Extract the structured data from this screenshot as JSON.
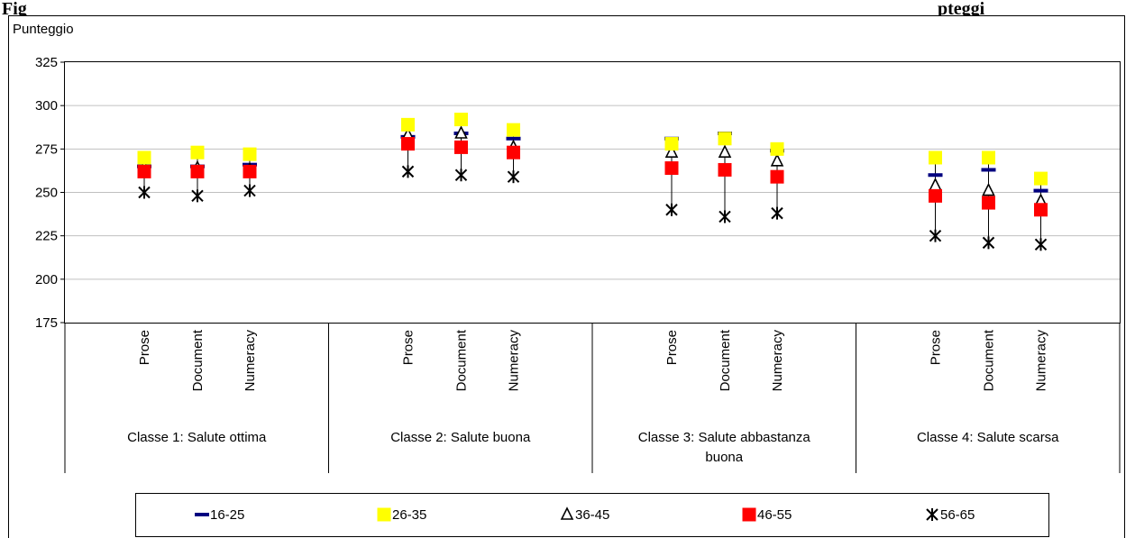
{
  "header": {
    "caption": "Fig",
    "caption_tail": "pteggi"
  },
  "chart_data": {
    "type": "scatter",
    "title": "",
    "ylabel": "Punteggio",
    "ylim": [
      175,
      325
    ],
    "yticks": [
      175,
      200,
      225,
      250,
      275,
      300,
      325
    ],
    "grid": true,
    "legend_position": "bottom",
    "groups": [
      {
        "label": "Classe 1: Salute ottima",
        "categories": [
          "Prose",
          "Document",
          "Numeracy"
        ]
      },
      {
        "label": "Classe 2: Salute buona",
        "categories": [
          "Prose",
          "Document",
          "Numeracy"
        ]
      },
      {
        "label": "Classe 3: Salute abbastanza buona",
        "categories": [
          "Prose",
          "Document",
          "Numeracy"
        ]
      },
      {
        "label": "Classe 4: Salute scarsa",
        "categories": [
          "Prose",
          "Document",
          "Numeracy"
        ]
      }
    ],
    "series": [
      {
        "name": "16-25",
        "marker": "dash",
        "color": "#000080",
        "values": [
          265,
          265,
          266,
          282,
          284,
          281,
          281,
          284,
          274,
          260,
          263,
          251
        ]
      },
      {
        "name": "26-35",
        "marker": "square",
        "color": "#ffff00",
        "values": [
          270,
          273,
          272,
          289,
          292,
          286,
          278,
          281,
          275,
          270,
          270,
          258
        ]
      },
      {
        "name": "36-45",
        "marker": "triangle",
        "color": "#000000",
        "values": [
          264,
          264,
          263,
          283,
          284,
          276,
          273,
          273,
          268,
          254,
          251,
          245
        ]
      },
      {
        "name": "46-55",
        "marker": "square",
        "color": "#ff0000",
        "values": [
          262,
          262,
          262,
          278,
          276,
          273,
          264,
          263,
          259,
          248,
          244,
          240
        ]
      },
      {
        "name": "56-65",
        "marker": "star",
        "color": "#000000",
        "values": [
          250,
          248,
          251,
          262,
          260,
          259,
          240,
          236,
          238,
          225,
          221,
          220
        ]
      }
    ]
  }
}
